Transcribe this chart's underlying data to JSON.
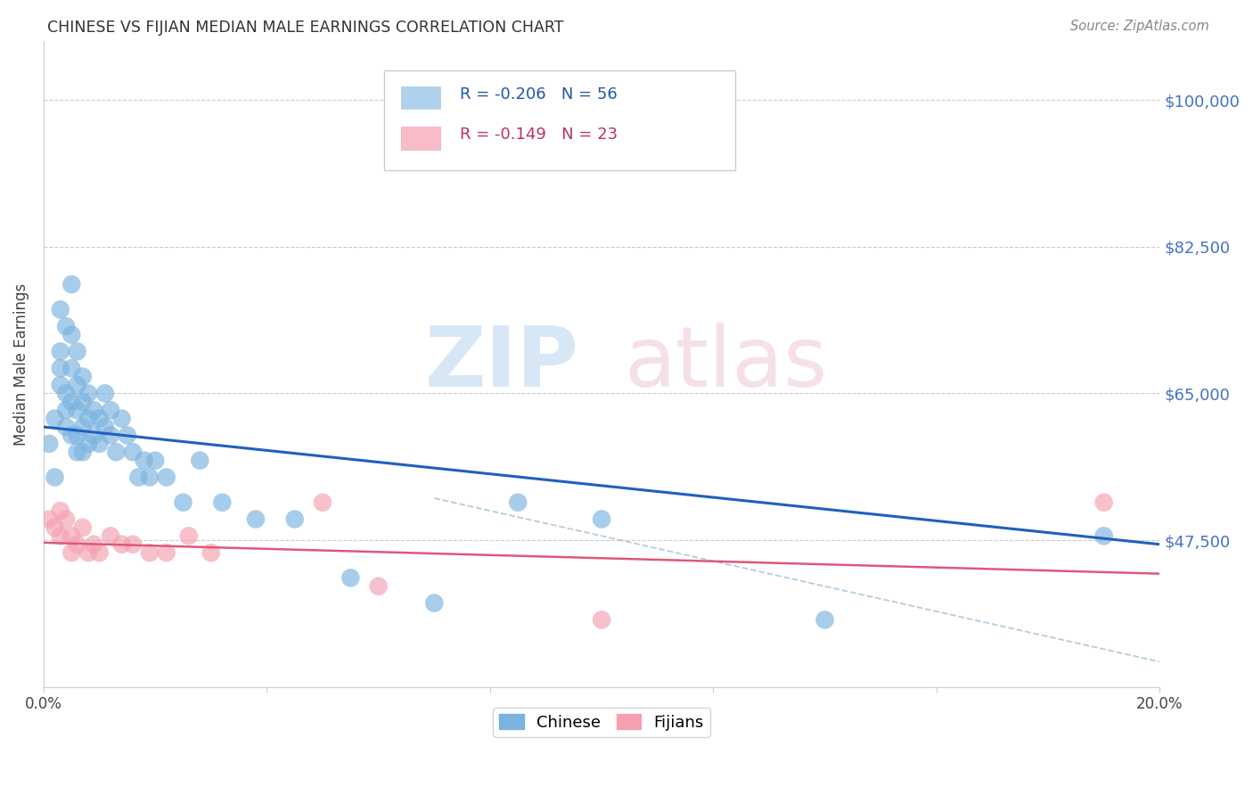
{
  "title": "CHINESE VS FIJIAN MEDIAN MALE EARNINGS CORRELATION CHART",
  "source": "Source: ZipAtlas.com",
  "ylabel": "Median Male Earnings",
  "y_tick_values": [
    100000,
    82500,
    65000,
    47500
  ],
  "y_tick_labels": [
    "$100,000",
    "$82,500",
    "$65,000",
    "$47,500"
  ],
  "xlim": [
    0.0,
    0.2
  ],
  "ylim": [
    30000,
    107000
  ],
  "chinese_color": "#7ab3e0",
  "fijian_color": "#f4a0b0",
  "chinese_line_color": "#2060c0",
  "fijian_line_color": "#e05878",
  "dashed_line_color": "#a8c4d8",
  "background_color": "#ffffff",
  "grid_color": "#cccccc",
  "chinese_x": [
    0.001,
    0.002,
    0.002,
    0.003,
    0.003,
    0.003,
    0.003,
    0.004,
    0.004,
    0.004,
    0.004,
    0.005,
    0.005,
    0.005,
    0.005,
    0.005,
    0.006,
    0.006,
    0.006,
    0.006,
    0.006,
    0.007,
    0.007,
    0.007,
    0.007,
    0.008,
    0.008,
    0.008,
    0.009,
    0.009,
    0.01,
    0.01,
    0.011,
    0.011,
    0.012,
    0.012,
    0.013,
    0.014,
    0.015,
    0.016,
    0.017,
    0.018,
    0.019,
    0.02,
    0.022,
    0.025,
    0.028,
    0.032,
    0.038,
    0.045,
    0.055,
    0.07,
    0.085,
    0.1,
    0.14,
    0.19
  ],
  "chinese_y": [
    59000,
    62000,
    55000,
    70000,
    75000,
    68000,
    66000,
    73000,
    65000,
    63000,
    61000,
    78000,
    72000,
    68000,
    64000,
    60000,
    70000,
    66000,
    63000,
    60000,
    58000,
    67000,
    64000,
    61000,
    58000,
    65000,
    62000,
    59000,
    63000,
    60000,
    62000,
    59000,
    65000,
    61000,
    63000,
    60000,
    58000,
    62000,
    60000,
    58000,
    55000,
    57000,
    55000,
    57000,
    55000,
    52000,
    57000,
    52000,
    50000,
    50000,
    43000,
    40000,
    52000,
    50000,
    38000,
    48000
  ],
  "fijian_x": [
    0.001,
    0.002,
    0.003,
    0.003,
    0.004,
    0.005,
    0.005,
    0.006,
    0.007,
    0.008,
    0.009,
    0.01,
    0.012,
    0.014,
    0.016,
    0.019,
    0.022,
    0.026,
    0.03,
    0.05,
    0.06,
    0.1,
    0.19
  ],
  "fijian_y": [
    50000,
    49000,
    51000,
    48000,
    50000,
    48000,
    46000,
    47000,
    49000,
    46000,
    47000,
    46000,
    48000,
    47000,
    47000,
    46000,
    46000,
    48000,
    46000,
    52000,
    42000,
    38000,
    52000
  ],
  "chinese_line_x0": 0.0,
  "chinese_line_y0": 61000,
  "chinese_line_x1": 0.2,
  "chinese_line_y1": 47000,
  "fijian_line_x0": 0.0,
  "fijian_line_y0": 47200,
  "fijian_line_x1": 0.2,
  "fijian_line_y1": 43500,
  "dashed_line_x0": 0.07,
  "dashed_line_y0": 52500,
  "dashed_line_x1": 0.2,
  "dashed_line_y1": 33000,
  "legend_r_chinese": "R = -0.206",
  "legend_n_chinese": "N = 56",
  "legend_r_fijian": "R = -0.149",
  "legend_n_fijian": "N = 23"
}
